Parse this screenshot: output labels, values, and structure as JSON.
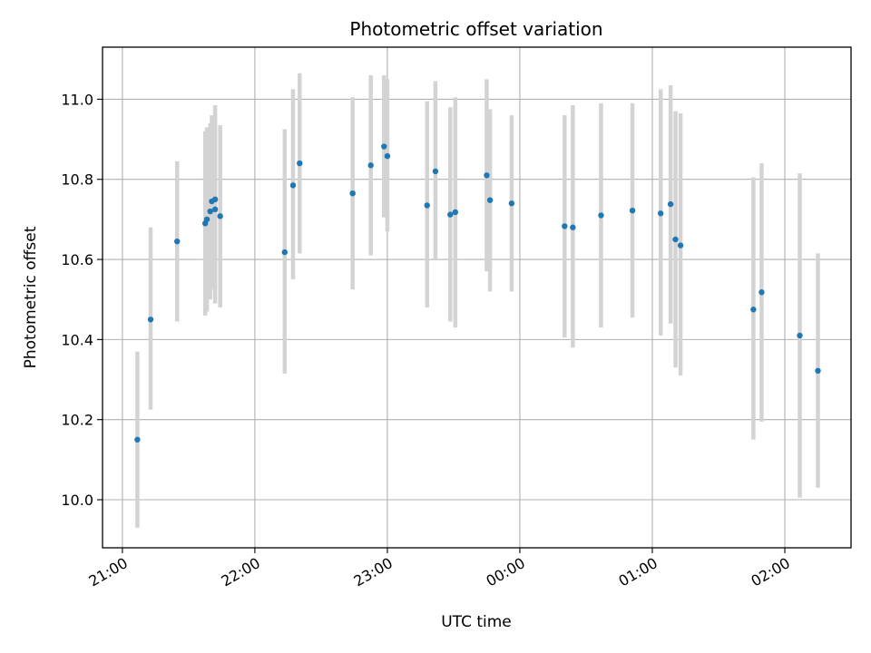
{
  "chart_data": {
    "type": "scatter",
    "title": "Photometric offset variation",
    "xlabel": "UTC time",
    "ylabel": "Photometric offset",
    "x_ticks": [
      "21:00",
      "22:00",
      "23:00",
      "00:00",
      "01:00",
      "02:00"
    ],
    "y_ticks": [
      "10.0",
      "10.2",
      "10.4",
      "10.6",
      "10.8",
      "11.0"
    ],
    "y_tick_values": [
      10.0,
      10.2,
      10.4,
      10.6,
      10.8,
      11.0
    ],
    "x_axis_unit": "hours after 21:00 UTC",
    "x_range": [
      -0.15,
      5.5
    ],
    "y_range": [
      9.88,
      11.13
    ],
    "grid": true,
    "point_color": "#1f77b4",
    "errorbar_color": "#d3d3d3",
    "points": [
      {
        "x": 0.113,
        "y": 10.15,
        "low": 9.93,
        "high": 10.37
      },
      {
        "x": 0.213,
        "y": 10.45,
        "low": 10.225,
        "high": 10.68
      },
      {
        "x": 0.413,
        "y": 10.645,
        "low": 10.445,
        "high": 10.845
      },
      {
        "x": 0.625,
        "y": 10.69,
        "low": 10.46,
        "high": 10.92
      },
      {
        "x": 0.638,
        "y": 10.7,
        "low": 10.47,
        "high": 10.93
      },
      {
        "x": 0.663,
        "y": 10.72,
        "low": 10.5,
        "high": 10.94
      },
      {
        "x": 0.675,
        "y": 10.745,
        "low": 10.525,
        "high": 10.96
      },
      {
        "x": 0.7,
        "y": 10.75,
        "low": 10.52,
        "high": 10.985
      },
      {
        "x": 0.7,
        "y": 10.725,
        "low": 10.49,
        "high": 10.96
      },
      {
        "x": 0.738,
        "y": 10.708,
        "low": 10.48,
        "high": 10.935
      },
      {
        "x": 1.225,
        "y": 10.618,
        "low": 10.315,
        "high": 10.925
      },
      {
        "x": 1.288,
        "y": 10.785,
        "low": 10.55,
        "high": 11.025
      },
      {
        "x": 1.338,
        "y": 10.84,
        "low": 10.615,
        "high": 11.065
      },
      {
        "x": 1.738,
        "y": 10.765,
        "low": 10.525,
        "high": 11.005
      },
      {
        "x": 1.875,
        "y": 10.835,
        "low": 10.61,
        "high": 11.06
      },
      {
        "x": 1.975,
        "y": 10.882,
        "low": 10.705,
        "high": 11.06
      },
      {
        "x": 2.0,
        "y": 10.858,
        "low": 10.67,
        "high": 11.05
      },
      {
        "x": 2.3,
        "y": 10.735,
        "low": 10.48,
        "high": 10.995
      },
      {
        "x": 2.363,
        "y": 10.82,
        "low": 10.6,
        "high": 11.045
      },
      {
        "x": 2.475,
        "y": 10.712,
        "low": 10.445,
        "high": 10.98
      },
      {
        "x": 2.513,
        "y": 10.718,
        "low": 10.43,
        "high": 11.005
      },
      {
        "x": 2.75,
        "y": 10.81,
        "low": 10.57,
        "high": 11.05
      },
      {
        "x": 2.775,
        "y": 10.748,
        "low": 10.52,
        "high": 10.975
      },
      {
        "x": 2.938,
        "y": 10.74,
        "low": 10.52,
        "high": 10.96
      },
      {
        "x": 3.338,
        "y": 10.683,
        "low": 10.405,
        "high": 10.96
      },
      {
        "x": 3.4,
        "y": 10.68,
        "low": 10.38,
        "high": 10.985
      },
      {
        "x": 3.613,
        "y": 10.71,
        "low": 10.43,
        "high": 10.99
      },
      {
        "x": 3.85,
        "y": 10.722,
        "low": 10.455,
        "high": 10.99
      },
      {
        "x": 4.063,
        "y": 10.715,
        "low": 10.41,
        "high": 11.025
      },
      {
        "x": 4.138,
        "y": 10.738,
        "low": 10.44,
        "high": 11.035
      },
      {
        "x": 4.175,
        "y": 10.65,
        "low": 10.33,
        "high": 10.97
      },
      {
        "x": 4.213,
        "y": 10.635,
        "low": 10.31,
        "high": 10.965
      },
      {
        "x": 4.763,
        "y": 10.475,
        "low": 10.15,
        "high": 10.805
      },
      {
        "x": 4.825,
        "y": 10.518,
        "low": 10.195,
        "high": 10.84
      },
      {
        "x": 5.113,
        "y": 10.41,
        "low": 10.005,
        "high": 10.815
      },
      {
        "x": 5.25,
        "y": 10.322,
        "low": 10.03,
        "high": 10.615
      }
    ]
  }
}
